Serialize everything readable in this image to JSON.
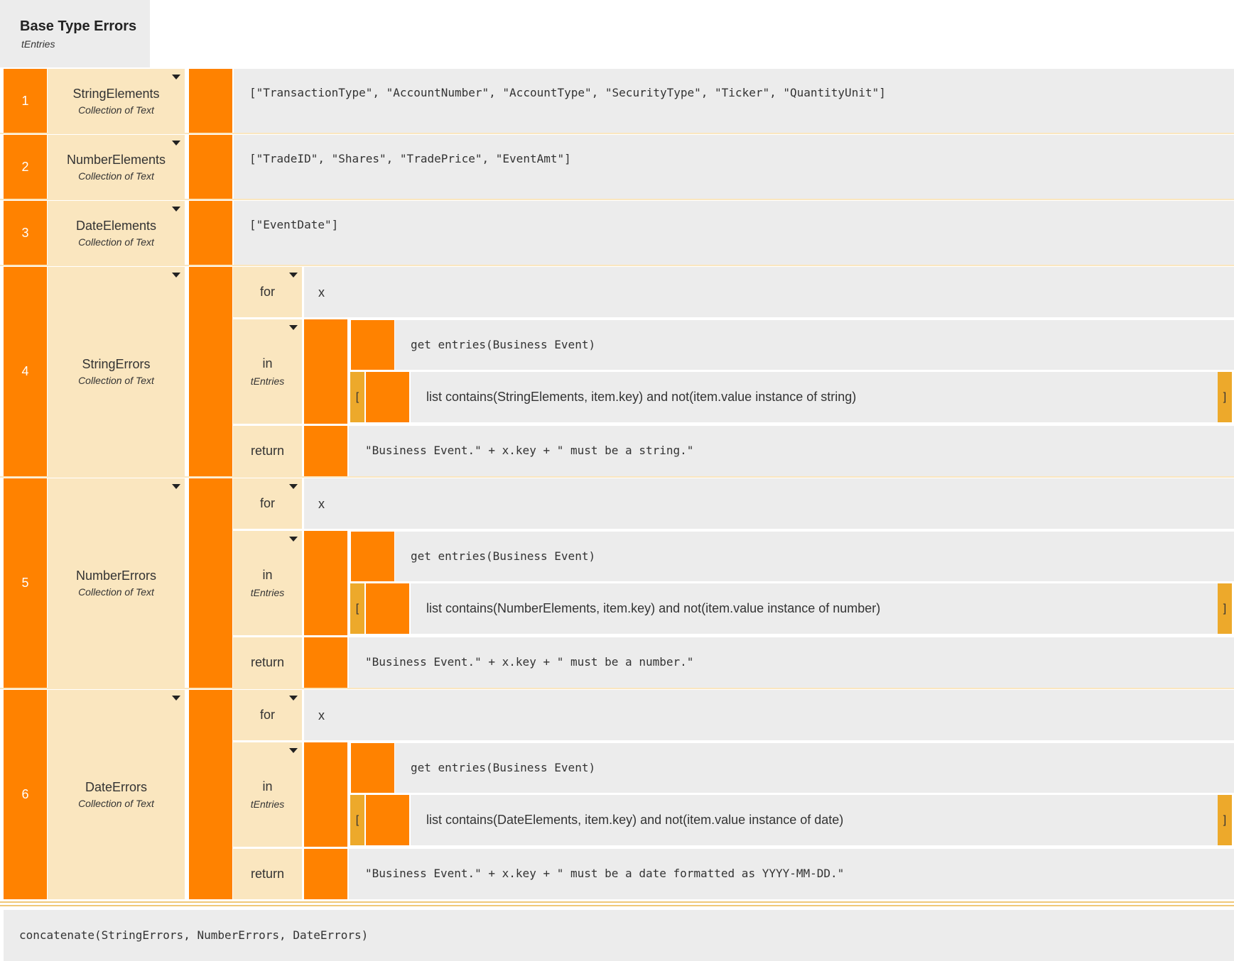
{
  "header": {
    "title": "Base Type Errors",
    "subtitle": "tEntries"
  },
  "rows": [
    {
      "num": "1",
      "name": "StringElements",
      "type": "Collection of Text",
      "value": "[\"TransactionType\", \"AccountNumber\", \"AccountType\", \"SecurityType\", \"Ticker\", \"QuantityUnit\"]"
    },
    {
      "num": "2",
      "name": "NumberElements",
      "type": "Collection of Text",
      "value": "[\"TradeID\", \"Shares\", \"TradePrice\", \"EventAmt\"]"
    },
    {
      "num": "3",
      "name": "DateElements",
      "type": "Collection of Text",
      "value": "[\"EventDate\"]"
    },
    {
      "num": "4",
      "name": "StringErrors",
      "type": "Collection of Text",
      "for_label": "for",
      "for_var": "x",
      "in_label": "in",
      "in_type": "tEntries",
      "source": "get entries(Business Event)",
      "filter_open": "[",
      "filter": "list contains(StringElements, item.key) and not(item.value instance of string)",
      "filter_close": "]",
      "return_label": "return",
      "return_expr": "\"Business Event.\" + x.key + \" must be a string.\""
    },
    {
      "num": "5",
      "name": "NumberErrors",
      "type": "Collection of Text",
      "for_label": "for",
      "for_var": "x",
      "in_label": "in",
      "in_type": "tEntries",
      "source": "get entries(Business Event)",
      "filter_open": "[",
      "filter": "list contains(NumberElements, item.key) and not(item.value instance of number)",
      "filter_close": "]",
      "return_label": "return",
      "return_expr": "\"Business Event.\" + x.key + \" must be a number.\""
    },
    {
      "num": "6",
      "name": "DateErrors",
      "type": "Collection of Text",
      "for_label": "for",
      "for_var": "x",
      "in_label": "in",
      "in_type": "tEntries",
      "source": "get entries(Business Event)",
      "filter_open": "[",
      "filter": "list contains(DateElements, item.key) and not(item.value instance of date)",
      "filter_close": "]",
      "return_label": "return",
      "return_expr": "\"Business Event.\" + x.key + \" must be a date formatted as YYYY-MM-DD.\""
    }
  ],
  "result": {
    "expression": "concatenate(StringErrors, NumberErrors, DateErrors)"
  },
  "colors": {
    "orange": "#ff8200",
    "cream": "#fae6bf",
    "gold": "#eda92b",
    "gray": "#ececec"
  },
  "icons": {
    "dropdown": "caret-down-icon"
  }
}
